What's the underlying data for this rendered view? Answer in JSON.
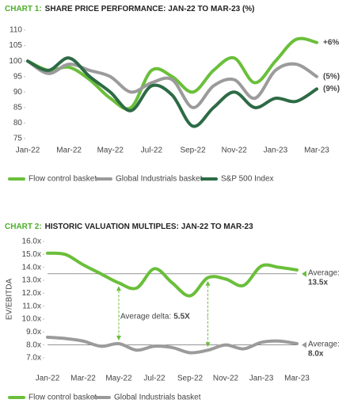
{
  "chart_data": [
    {
      "type": "line",
      "label": "CHART 1:",
      "title": "SHARE PRICE PERFORMANCE: JAN-22  TO MAR-23 (%)",
      "categories": [
        "Jan-22",
        null,
        "Mar-22",
        null,
        "May-22",
        null,
        "Jul-22",
        null,
        "Sep-22",
        null,
        "Nov-22",
        null,
        "Jan-23",
        null,
        "Mar-23"
      ],
      "ylim": [
        75,
        110
      ],
      "yticks": [
        75,
        80,
        85,
        90,
        95,
        100,
        105,
        110
      ],
      "series": [
        {
          "name": "Flow control basket",
          "color": "#6abf3a",
          "end_label": "+6%",
          "values": [
            100,
            97,
            98,
            94,
            88,
            85,
            97,
            95,
            90,
            97,
            101,
            93,
            100,
            107,
            106
          ]
        },
        {
          "name": "Global Industrials basket",
          "color": "#9b9b9b",
          "end_label": "(5%)",
          "values": [
            100,
            96,
            99,
            97,
            95,
            90,
            93,
            94,
            85,
            92,
            94,
            88,
            97,
            99,
            95
          ]
        },
        {
          "name": "S&P 500 Index",
          "color": "#2d6b45",
          "end_label": "(9%)",
          "values": [
            100,
            97,
            101,
            95,
            90,
            84,
            92,
            89,
            79,
            85,
            90,
            85,
            88,
            87,
            91
          ]
        }
      ]
    },
    {
      "type": "line",
      "label": "CHART 2:",
      "title": "HISTORIC VALUATION MULTIPLES: JAN-22 TO MAR-23",
      "y_label": "EV/EBITDA",
      "categories": [
        "Jan-22",
        null,
        "Mar-22",
        null,
        "May-22",
        null,
        "Jul-22",
        null,
        "Sep-22",
        null,
        "Nov-22",
        null,
        "Jan-23",
        null,
        "Mar-23"
      ],
      "ylim": [
        7,
        16
      ],
      "yticks": [
        {
          "value": 7,
          "label": "7.0x"
        },
        {
          "value": 8,
          "label": "8.0x"
        },
        {
          "value": 9,
          "label": "9.0x"
        },
        {
          "value": 10,
          "label": "10.0x"
        },
        {
          "value": 11,
          "label": "11.0x"
        },
        {
          "value": 12,
          "label": "12.0x"
        },
        {
          "value": 13,
          "label": "13.0x"
        },
        {
          "value": 14,
          "label": "14.0x"
        },
        {
          "value": 15,
          "label": "15.0x"
        },
        {
          "value": 16,
          "label": "16.0x"
        }
      ],
      "series": [
        {
          "name": "Flow control basket",
          "color": "#6abf3a",
          "values": [
            15.1,
            15.0,
            14.2,
            13.5,
            12.8,
            12.4,
            13.9,
            12.8,
            11.8,
            13.2,
            13.1,
            12.6,
            14.1,
            14.0,
            13.8
          ],
          "average": {
            "label": "Average:",
            "value": 13.5,
            "value_label": "13.5x"
          }
        },
        {
          "name": "Global Industrials basket",
          "color": "#9b9b9b",
          "values": [
            8.6,
            8.5,
            8.3,
            7.9,
            8.1,
            7.6,
            7.9,
            7.8,
            7.4,
            7.6,
            8.0,
            7.7,
            8.2,
            8.3,
            8.1
          ],
          "average": {
            "label": "Average:",
            "value": 8.0,
            "value_label": "8.0x"
          }
        }
      ],
      "delta": {
        "label": "Average delta:",
        "value": 5.5,
        "value_label": "5.5X"
      }
    }
  ]
}
